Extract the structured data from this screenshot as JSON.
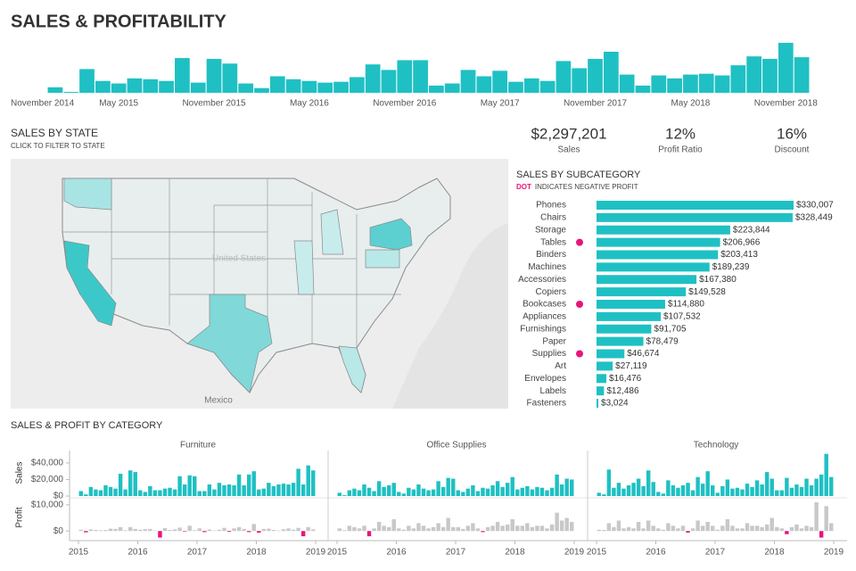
{
  "title": "SALES & PROFITABILITY",
  "kpis": [
    {
      "value": "$2,297,201",
      "label": "Sales"
    },
    {
      "value": "12%",
      "label": "Profit Ratio"
    },
    {
      "value": "16%",
      "label": "Discount"
    }
  ],
  "map": {
    "title": "SALES BY STATE",
    "subtitle": "CLICK TO FILTER TO STATE",
    "labels": [
      "United States",
      "Mexico"
    ]
  },
  "chart_data": [
    {
      "type": "timeline",
      "color": "#1fc0c3",
      "x": [
        "2015-01",
        "2015-02",
        "2015-03",
        "2015-04",
        "2015-05",
        "2015-06",
        "2015-07",
        "2015-08",
        "2015-09",
        "2015-10",
        "2015-11",
        "2015-12",
        "2016-01",
        "2016-02",
        "2016-03",
        "2016-04",
        "2016-05",
        "2016-06",
        "2016-07",
        "2016-08",
        "2016-09",
        "2016-10",
        "2016-11",
        "2016-12",
        "2017-01",
        "2017-02",
        "2017-03",
        "2017-04",
        "2017-05",
        "2017-06",
        "2017-07",
        "2017-08",
        "2017-09",
        "2017-10",
        "2017-11",
        "2017-12",
        "2018-01",
        "2018-02",
        "2018-03",
        "2018-04",
        "2018-05",
        "2018-06",
        "2018-07",
        "2018-08",
        "2018-09",
        "2018-10",
        "2018-11",
        "2018-12"
      ],
      "values": [
        13000,
        2000,
        56000,
        28000,
        22000,
        34000,
        32000,
        28000,
        82000,
        24000,
        80000,
        69000,
        22000,
        11000,
        39000,
        32000,
        28000,
        24000,
        26000,
        37000,
        67000,
        54000,
        77000,
        77000,
        17000,
        22000,
        54000,
        39000,
        52000,
        26000,
        34000,
        28000,
        75000,
        58000,
        80000,
        97000,
        43000,
        17000,
        41000,
        34000,
        43000,
        45000,
        41000,
        65000,
        86000,
        80000,
        118000,
        84000
      ],
      "xticks": [
        {
          "value": "2014-11",
          "label": "November 2014"
        },
        {
          "value": "2015-05",
          "label": "May 2015"
        },
        {
          "value": "2015-11",
          "label": "November 2015"
        },
        {
          "value": "2016-05",
          "label": "May 2016"
        },
        {
          "value": "2016-11",
          "label": "November 2016"
        },
        {
          "value": "2017-05",
          "label": "May 2017"
        },
        {
          "value": "2017-11",
          "label": "November 2017"
        },
        {
          "value": "2018-05",
          "label": "May 2018"
        },
        {
          "value": "2018-11",
          "label": "November 2018"
        }
      ]
    },
    {
      "type": "barh",
      "title": "SALES BY SUBCATEGORY",
      "subtitle_highlight": "DOT",
      "subtitle": "INDICATES NEGATIVE PROFIT",
      "color": "#1fc0c3",
      "dot_color": "#e8157c",
      "categories": [
        "Phones",
        "Chairs",
        "Storage",
        "Tables",
        "Binders",
        "Machines",
        "Accessories",
        "Copiers",
        "Bookcases",
        "Appliances",
        "Furnishings",
        "Paper",
        "Supplies",
        "Art",
        "Envelopes",
        "Labels",
        "Fasteners"
      ],
      "values": [
        330007,
        328449,
        223844,
        206966,
        203413,
        189239,
        167380,
        149528,
        114880,
        107532,
        91705,
        78479,
        46674,
        27119,
        16476,
        12486,
        3024
      ],
      "value_labels": [
        "$330,007",
        "$328,449",
        "$223,844",
        "$206,966",
        "$203,413",
        "$189,239",
        "$167,380",
        "$149,528",
        "$114,880",
        "$107,532",
        "$91,705",
        "$78,479",
        "$46,674",
        "$27,119",
        "$16,476",
        "$12,486",
        "$3,024"
      ],
      "negative_profit": [
        false,
        false,
        false,
        true,
        false,
        false,
        false,
        false,
        true,
        false,
        false,
        false,
        true,
        false,
        false,
        false,
        false
      ]
    },
    {
      "type": "small_multiples",
      "title": "SALES & PROFIT BY CATEGORY",
      "x": [
        "2015-01",
        "2015-02",
        "2015-03",
        "2015-04",
        "2015-05",
        "2015-06",
        "2015-07",
        "2015-08",
        "2015-09",
        "2015-10",
        "2015-11",
        "2015-12",
        "2016-01",
        "2016-02",
        "2016-03",
        "2016-04",
        "2016-05",
        "2016-06",
        "2016-07",
        "2016-08",
        "2016-09",
        "2016-10",
        "2016-11",
        "2016-12",
        "2017-01",
        "2017-02",
        "2017-03",
        "2017-04",
        "2017-05",
        "2017-06",
        "2017-07",
        "2017-08",
        "2017-09",
        "2017-10",
        "2017-11",
        "2017-12",
        "2018-01",
        "2018-02",
        "2018-03",
        "2018-04",
        "2018-05",
        "2018-06",
        "2018-07",
        "2018-08",
        "2018-09",
        "2018-10",
        "2018-11",
        "2018-12"
      ],
      "xticks": [
        2015,
        2016,
        2017,
        2018,
        2019
      ],
      "sales_axis": {
        "label": "Sales",
        "color": "#1fc0c3",
        "ylim": [
          0,
          55000
        ],
        "yticks": [
          {
            "value": 0,
            "label": "$0"
          },
          {
            "value": 20000,
            "label": "$20,000"
          },
          {
            "value": 40000,
            "label": "$40,000"
          }
        ]
      },
      "profit_axis": {
        "label": "Profit",
        "color": "#c8c8c8",
        "negative_color": "#e8157c",
        "ylim": [
          -3000,
          12000
        ],
        "yticks": [
          {
            "value": 0,
            "label": "$0"
          },
          {
            "value": 10000,
            "label": "$10,000"
          }
        ]
      },
      "columns": [
        {
          "name": "Furniture",
          "sales": [
            6000,
            2000,
            11000,
            8000,
            7000,
            13000,
            11000,
            9000,
            27000,
            8000,
            31000,
            29000,
            7000,
            5000,
            12000,
            7000,
            7000,
            9000,
            10000,
            8000,
            24000,
            14000,
            25000,
            24000,
            6000,
            6000,
            14000,
            8000,
            16000,
            13000,
            14000,
            13000,
            26000,
            13000,
            26000,
            30000,
            8000,
            9000,
            16000,
            12000,
            14000,
            15000,
            14000,
            16000,
            33000,
            14000,
            37000,
            31000
          ],
          "profit": [
            500,
            -500,
            600,
            400,
            300,
            400,
            900,
            800,
            1500,
            300,
            1500,
            800,
            500,
            700,
            800,
            200,
            -2500,
            1100,
            400,
            600,
            1300,
            -200,
            2000,
            300,
            1000,
            -400,
            600,
            200,
            500,
            1200,
            -300,
            1000,
            1500,
            800,
            -400,
            2700,
            -600,
            800,
            900,
            400,
            200,
            700,
            1000,
            500,
            1200,
            -2000,
            1500,
            600
          ]
        },
        {
          "name": "Office Supplies",
          "sales": [
            4000,
            1000,
            7000,
            9000,
            7000,
            14000,
            10000,
            6000,
            18000,
            11000,
            13000,
            16000,
            5000,
            3000,
            10000,
            8000,
            14000,
            9000,
            7000,
            8000,
            18000,
            11000,
            22000,
            21000,
            7000,
            5000,
            9000,
            13000,
            6000,
            10000,
            9000,
            13000,
            18000,
            11000,
            16000,
            23000,
            8000,
            10000,
            12000,
            8000,
            11000,
            10000,
            7000,
            10000,
            26000,
            14000,
            21000,
            20000
          ],
          "profit": [
            1000,
            300,
            2000,
            1500,
            1000,
            2000,
            -2000,
            1000,
            3500,
            2000,
            1500,
            4500,
            1000,
            500,
            2000,
            1000,
            3000,
            2000,
            1000,
            1500,
            3000,
            1500,
            5000,
            1500,
            1500,
            800,
            2000,
            3000,
            1000,
            -400,
            1500,
            2000,
            3500,
            2000,
            2500,
            4500,
            2000,
            2000,
            3000,
            1500,
            2000,
            2000,
            1000,
            2500,
            7000,
            4000,
            5000,
            3500
          ]
        },
        {
          "name": "Technology",
          "sales": [
            4000,
            2000,
            32000,
            10000,
            16000,
            9000,
            13000,
            16000,
            21000,
            12000,
            31000,
            17000,
            5000,
            3000,
            19000,
            13000,
            10000,
            13000,
            16000,
            7000,
            23000,
            15000,
            30000,
            13000,
            4000,
            12000,
            20000,
            9000,
            10000,
            8000,
            15000,
            11000,
            19000,
            14000,
            29000,
            21000,
            7000,
            7000,
            22000,
            10000,
            14000,
            11000,
            21000,
            13000,
            21000,
            26000,
            51000,
            23000
          ],
          "profit": [
            500,
            400,
            3000,
            1500,
            4000,
            1000,
            1500,
            1000,
            3500,
            1000,
            4000,
            2000,
            1000,
            500,
            3000,
            2000,
            1000,
            2000,
            -600,
            1000,
            4000,
            2000,
            3500,
            2000,
            500,
            2000,
            4500,
            2000,
            1000,
            1000,
            3000,
            2000,
            2000,
            1500,
            2500,
            5000,
            1500,
            1000,
            -1200,
            1500,
            2500,
            1000,
            2000,
            1500,
            11000,
            -2500,
            9500,
            3000
          ]
        }
      ]
    }
  ]
}
